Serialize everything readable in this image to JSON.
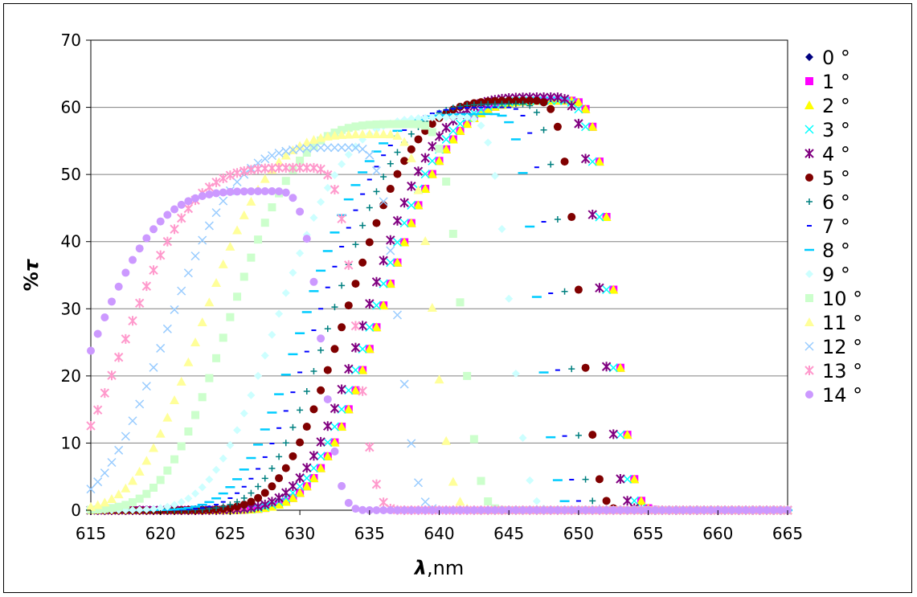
{
  "chart_data": {
    "type": "scatter",
    "title": "",
    "xlabel_symbol": "λ",
    "xlabel_unit": ",nm",
    "ylabel_prefix": "%",
    "ylabel_symbol": "τ",
    "xlim": [
      615,
      665
    ],
    "ylim": [
      0,
      70
    ],
    "xticks": [
      615,
      620,
      625,
      630,
      635,
      640,
      645,
      650,
      655,
      660,
      665
    ],
    "yticks": [
      0,
      10,
      20,
      30,
      40,
      50,
      60,
      70
    ],
    "grid": "horizontal",
    "legend_position": "right",
    "x_step": 0.5,
    "series": [
      {
        "name": "0 °",
        "color": "#000080",
        "marker": "diamond",
        "center": 649.0,
        "peak": 61.0
      },
      {
        "name": "1 °",
        "color": "#FF00FF",
        "marker": "square",
        "center": 649.0,
        "peak": 61.0
      },
      {
        "name": "2 °",
        "color": "#FFFF00",
        "marker": "triangle",
        "center": 649.0,
        "peak": 61.0
      },
      {
        "name": "3 °",
        "color": "#00FFFF",
        "marker": "x",
        "center": 648.5,
        "peak": 61.0
      },
      {
        "name": "4 °",
        "color": "#800080",
        "marker": "star",
        "center": 648.0,
        "peak": 61.5
      },
      {
        "name": "5 °",
        "color": "#800000",
        "marker": "circle",
        "center": 646.5,
        "peak": 61.0
      },
      {
        "name": "6 °",
        "color": "#008080",
        "marker": "plus",
        "center": 645.5,
        "peak": 60.5
      },
      {
        "name": "7 °",
        "color": "#0000FF",
        "marker": "dash",
        "center": 644.5,
        "peak": 60.0
      },
      {
        "name": "8 °",
        "color": "#00CCFF",
        "marker": "longdash",
        "center": 643.5,
        "peak": 59.0
      },
      {
        "name": "9 °",
        "color": "#CCFFFF",
        "marker": "diamond",
        "center": 641.5,
        "peak": 58.5
      },
      {
        "name": "10 °",
        "color": "#CCFFCC",
        "marker": "square",
        "center": 638.0,
        "peak": 57.5
      },
      {
        "name": "11 °",
        "color": "#FFFF99",
        "marker": "triangle",
        "center": 636.0,
        "peak": 56.0
      },
      {
        "name": "12 °",
        "color": "#99CCFF",
        "marker": "x",
        "center": 633.5,
        "peak": 54.0
      },
      {
        "name": "13 °",
        "color": "#FF99CC",
        "marker": "star",
        "center": 630.5,
        "peak": 51.0
      },
      {
        "name": "14 °",
        "color": "#CC99FF",
        "marker": "circle",
        "center": 628.0,
        "peak": 47.5
      }
    ]
  }
}
